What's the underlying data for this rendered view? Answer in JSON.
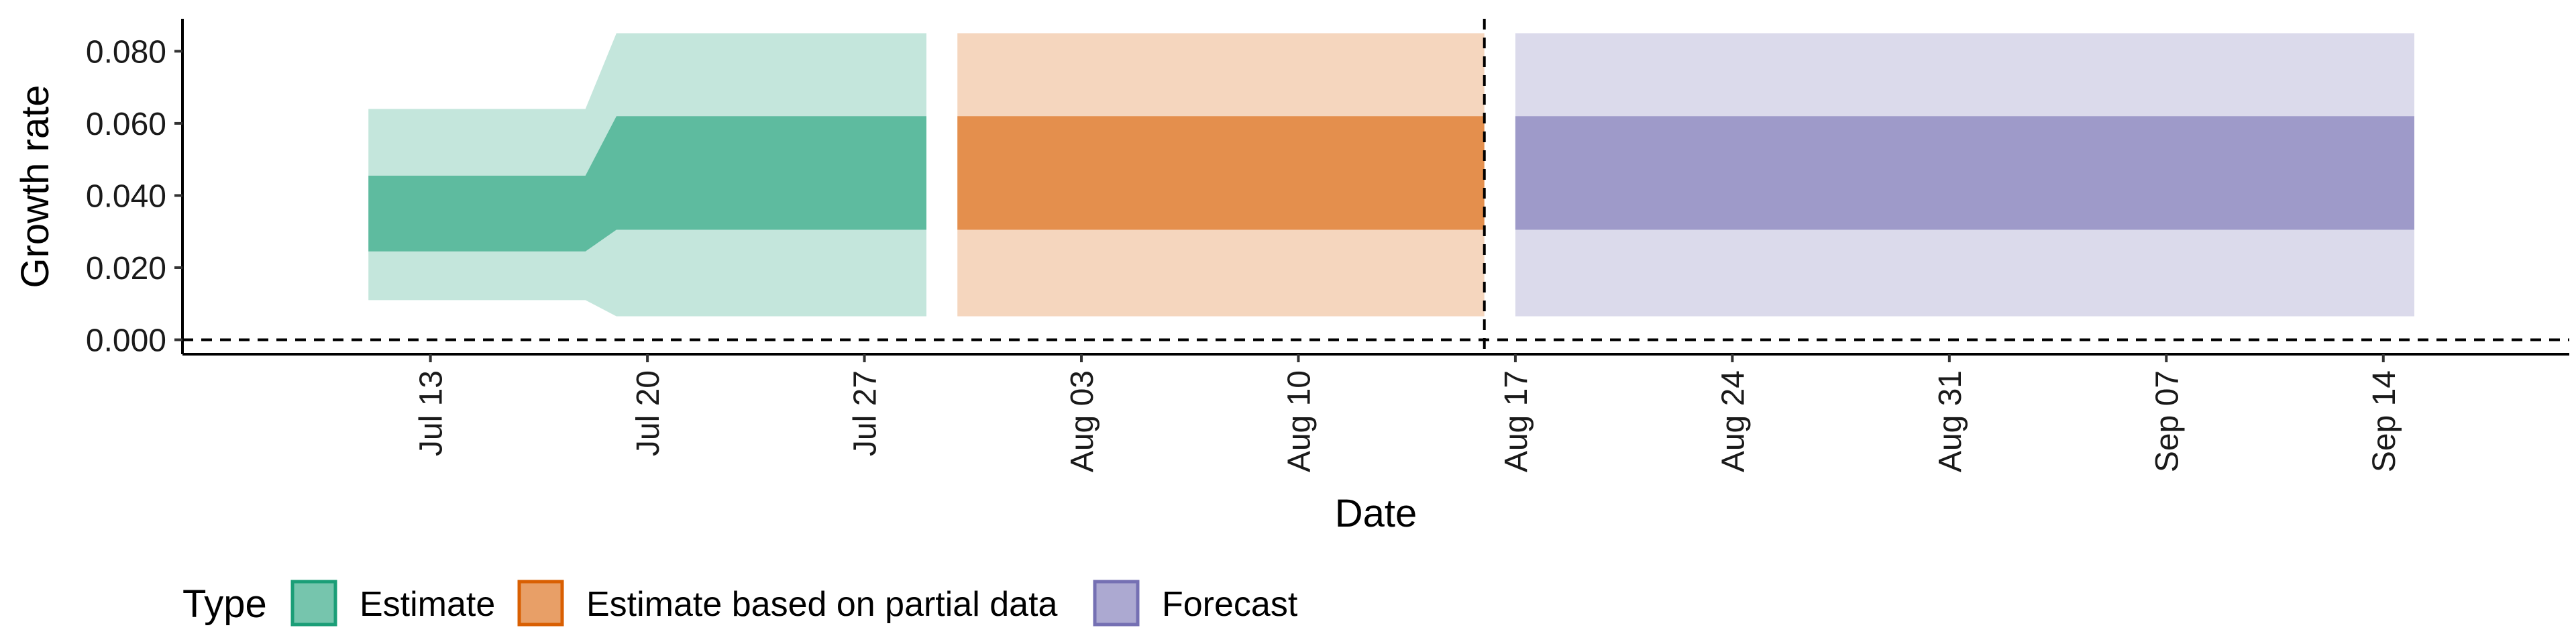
{
  "chart_data": {
    "type": "area",
    "xlabel": "Date",
    "ylabel": "Growth rate",
    "ylim": [
      -0.004,
      0.089
    ],
    "xlim": [
      "2020-07-05",
      "2020-09-20"
    ],
    "y_ticks": [
      "0.000",
      "0.020",
      "0.040",
      "0.060",
      "0.080"
    ],
    "y_tick_values": [
      0.0,
      0.02,
      0.04,
      0.06,
      0.08
    ],
    "x_ticks": [
      "Jul 13",
      "Jul 20",
      "Jul 27",
      "Aug 03",
      "Aug 10",
      "Aug 17",
      "Aug 24",
      "Aug 31",
      "Sep 07",
      "Sep 14"
    ],
    "x_tick_dates": [
      "2020-07-13",
      "2020-07-20",
      "2020-07-27",
      "2020-08-03",
      "2020-08-10",
      "2020-08-17",
      "2020-08-24",
      "2020-08-31",
      "2020-09-07",
      "2020-09-14"
    ],
    "legend_title": "Type",
    "legend_position": "bottom",
    "grid": false,
    "reference_lines": {
      "horizontal_y": 0.0,
      "vertical_date": "2020-08-16",
      "style": "dashed"
    },
    "series": [
      {
        "name": "Estimate",
        "fill_color": "#1b9e77",
        "points": [
          {
            "date": "2020-07-11",
            "lower90": 0.011,
            "lower50": 0.0245,
            "upper50": 0.0455,
            "upper90": 0.064
          },
          {
            "date": "2020-07-18",
            "lower90": 0.011,
            "lower50": 0.0245,
            "upper50": 0.0455,
            "upper90": 0.064
          },
          {
            "date": "2020-07-19",
            "lower90": 0.0065,
            "lower50": 0.0305,
            "upper50": 0.062,
            "upper90": 0.085
          },
          {
            "date": "2020-07-29",
            "lower90": 0.0065,
            "lower50": 0.0305,
            "upper50": 0.062,
            "upper90": 0.085
          }
        ]
      },
      {
        "name": "Estimate based on partial data",
        "fill_color": "#d95f02",
        "points": [
          {
            "date": "2020-07-30",
            "lower90": 0.0065,
            "lower50": 0.0305,
            "upper50": 0.062,
            "upper90": 0.085
          },
          {
            "date": "2020-08-16",
            "lower90": 0.0065,
            "lower50": 0.0305,
            "upper50": 0.062,
            "upper90": 0.085
          }
        ]
      },
      {
        "name": "Forecast",
        "fill_color": "#7570b3",
        "points": [
          {
            "date": "2020-08-17",
            "lower90": 0.0065,
            "lower50": 0.0305,
            "upper50": 0.062,
            "upper90": 0.085
          },
          {
            "date": "2020-09-15",
            "lower90": 0.0065,
            "lower50": 0.0305,
            "upper50": 0.062,
            "upper90": 0.085
          }
        ]
      }
    ]
  }
}
